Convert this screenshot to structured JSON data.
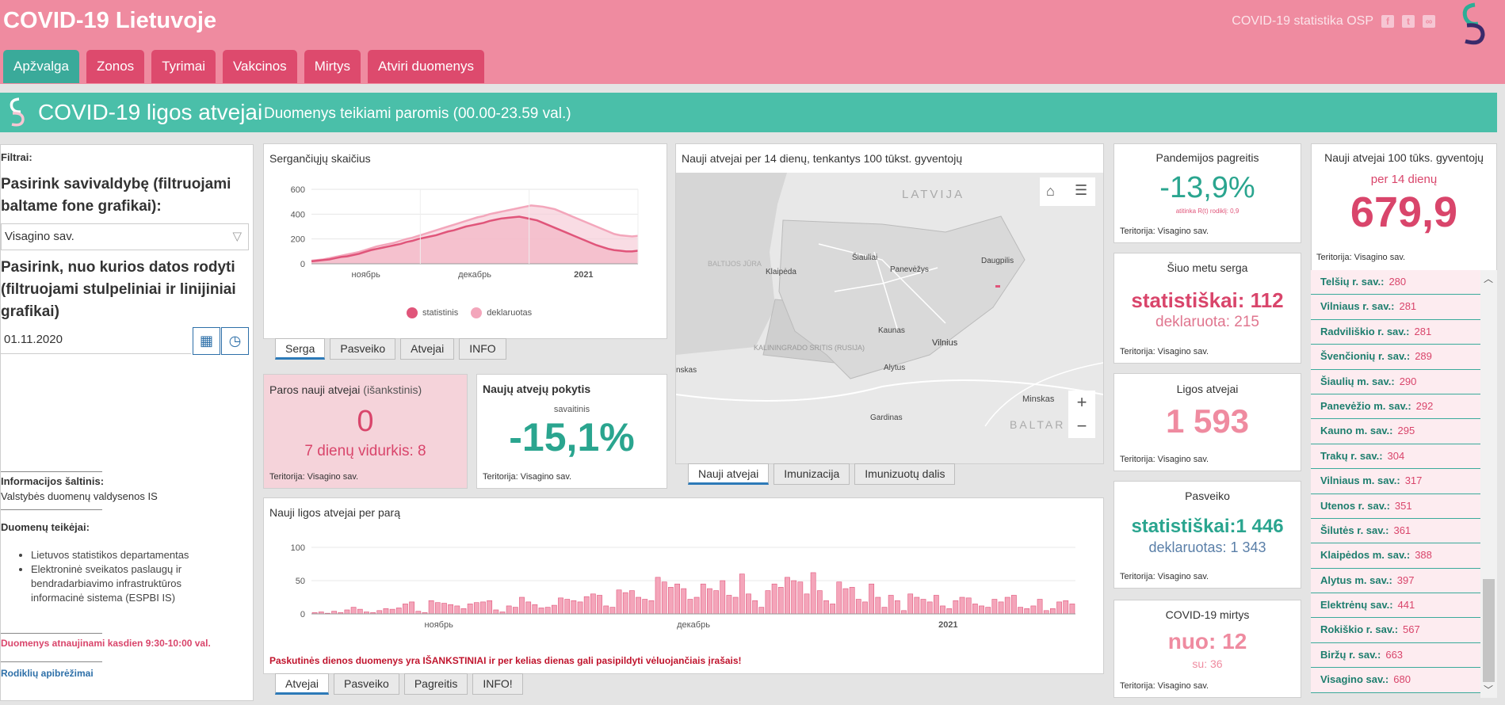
{
  "app": {
    "title": "COVID-19 Lietuvoje",
    "source_label": "COVID-19 statistika OSP"
  },
  "nav": {
    "tabs": [
      "Apžvalga",
      "Zonos",
      "Tyrimai",
      "Vakcinos",
      "Mirtys",
      "Atviri duomenys"
    ]
  },
  "banner": {
    "title": "COVID-19 ligos atvejai",
    "subtitle": "Duomenys teikiami paromis (00.00-23.59 val.)"
  },
  "sidebar": {
    "filters_label": "Filtrai:",
    "muni_label": "Pasirink savivaldybę (filtruojami baltame fone grafikai):",
    "muni_value": "Visagino sav.",
    "date_label": "Pasirink, nuo kurios datos rodyti (filtruojami stulpeliniai ir linijiniai grafikai)",
    "date_value": "01.11.2020",
    "source_title": "Informacijos šaltinis:",
    "source_text": "Valstybės duomenų valdysenos IS",
    "providers_title": "Duomenų teikėjai:",
    "provider_1": "Lietuvos statistikos departamentas",
    "provider_2": "Elektroninė sveikatos paslaugų ir bendradarbiavimo infrastruktūros informacinė sistema (ESPBI IS)",
    "update_note": "Duomenys atnaujinami kasdien 9:30-10:00 val.",
    "definitions_link": "Rodiklių apibrėžimai"
  },
  "territory": "Teritorija: Visagino sav.",
  "sick_chart": {
    "title": "Sergančiųjų skaičius",
    "tabs": [
      "Serga",
      "Pasveiko",
      "Atvejai",
      "INFO"
    ],
    "legend": [
      "statistinis",
      "deklaruotas"
    ],
    "colors": {
      "statistinis": "#e0557a",
      "deklaruotas": "#f3a6bb"
    }
  },
  "map": {
    "title": "Nauji atvejai per 14 dienų, tenkantys 100 tūkst. gyventojų",
    "tabs": [
      "Nauji atvejai",
      "Imunizacija",
      "Imunizuotų dalis"
    ],
    "labels": [
      "LATVIJA",
      "Šiauliai",
      "Panevėžys",
      "Daugpilis",
      "BALTIJOS JŪRA",
      "Klaipėda",
      "KALININGRADO SRITIS (RUSIJA)",
      "Kaunas",
      "Vilnius",
      "Alytus",
      "nskas",
      "Minskas",
      "Gardinas",
      "BALTAR"
    ],
    "zoom_in": "+",
    "zoom_out": "−"
  },
  "daily_new": {
    "title": "Paros nauji atvejai",
    "qualifier": "(išankstinis)",
    "value": "0",
    "avg_label": "7 dienų vidurkis: 8"
  },
  "change": {
    "title": "Naujų atvejų pokytis",
    "period": "savaitinis",
    "value": "-15,1%"
  },
  "daily_chart": {
    "title": "Nauji ligos atvejai per parą",
    "warning": "Paskutinės dienos duomenys yra IŠANKSTINIAI ir per kelias dienas gali pasipildyti vėluojančiais įrašais!",
    "tabs": [
      "Atvejai",
      "Pasveiko",
      "Pagreitis",
      "INFO!"
    ]
  },
  "acceleration": {
    "title": "Pandemijos pagreitis",
    "value": "-13,9%",
    "note": "atitinka R(t) rodiklį: 0,9"
  },
  "current_sick": {
    "title": "Šiuo metu serga",
    "stat": "statistiškai: 112",
    "decl": "deklaruota: 215"
  },
  "cases": {
    "title": "Ligos atvejai",
    "value": "1 593"
  },
  "recovered": {
    "title": "Pasveiko",
    "stat": "statistiškai:1 446",
    "decl": "deklaruotas: 1 343"
  },
  "deaths": {
    "title": "COVID-19 mirtys",
    "from": "nuo: 12",
    "with": "su: 36"
  },
  "incidence": {
    "title": "Nauji atvejai 100 tūks. gyventojų",
    "period": "per 14 dienų",
    "value": "679,9"
  },
  "municipalities": [
    {
      "name": "Telšių r. sav.:",
      "value": "280"
    },
    {
      "name": "Vilniaus r. sav.:",
      "value": "281"
    },
    {
      "name": "Radviliškio r. sav.:",
      "value": "281"
    },
    {
      "name": "Švenčionių r. sav.:",
      "value": "289"
    },
    {
      "name": "Šiaulių m. sav.:",
      "value": "290"
    },
    {
      "name": "Panevėžio m. sav.:",
      "value": "292"
    },
    {
      "name": "Kauno m. sav.:",
      "value": "295"
    },
    {
      "name": "Trakų r. sav.:",
      "value": "304"
    },
    {
      "name": "Vilniaus m. sav.:",
      "value": "317"
    },
    {
      "name": "Utenos r. sav.:",
      "value": "351"
    },
    {
      "name": "Šilutės r. sav.:",
      "value": "361"
    },
    {
      "name": "Klaipėdos m. sav.:",
      "value": "388"
    },
    {
      "name": "Alytus m. sav.:",
      "value": "397"
    },
    {
      "name": "Elektrėnų sav.:",
      "value": "441"
    },
    {
      "name": "Rokiškio r. sav.:",
      "value": "567"
    },
    {
      "name": "Biržų r. sav.:",
      "value": "663"
    },
    {
      "name": "Visagino sav.:",
      "value": "680"
    }
  ],
  "chart_data": [
    {
      "type": "area",
      "title": "Sergančiųjų skaičius",
      "x_ticks": [
        "ноябрь",
        "декабрь",
        "2021"
      ],
      "ylim": [
        0,
        600
      ],
      "y_ticks": [
        0,
        200,
        400,
        600
      ],
      "series": [
        {
          "name": "statistinis",
          "values": [
            20,
            25,
            30,
            35,
            45,
            55,
            60,
            70,
            80,
            95,
            110,
            120,
            130,
            140,
            150,
            160,
            175,
            185,
            200,
            210,
            220,
            230,
            245,
            260,
            270,
            285,
            300,
            310,
            320,
            330,
            345,
            355,
            365,
            370,
            375,
            380,
            370,
            360,
            350,
            330,
            310,
            290,
            270,
            250,
            230,
            210,
            190,
            170,
            150,
            135,
            120,
            110,
            105,
            100,
            100,
            105
          ]
        },
        {
          "name": "deklaruotas",
          "values": [
            25,
            30,
            35,
            45,
            55,
            65,
            75,
            85,
            95,
            110,
            125,
            140,
            150,
            160,
            170,
            185,
            200,
            210,
            225,
            240,
            255,
            270,
            285,
            300,
            315,
            330,
            345,
            360,
            375,
            385,
            400,
            410,
            420,
            430,
            440,
            450,
            460,
            470,
            465,
            460,
            450,
            440,
            420,
            400,
            380,
            360,
            340,
            320,
            300,
            280,
            260,
            240,
            230,
            225,
            220,
            225
          ]
        }
      ]
    },
    {
      "type": "bar",
      "title": "Nauji ligos atvejai per parą",
      "x_ticks": [
        "ноябрь",
        "декабрь",
        "2021"
      ],
      "ylim": [
        0,
        100
      ],
      "y_ticks": [
        0,
        50,
        100
      ],
      "values": [
        2,
        3,
        1,
        4,
        2,
        6,
        10,
        7,
        3,
        2,
        5,
        8,
        7,
        9,
        15,
        18,
        4,
        2,
        20,
        17,
        16,
        14,
        12,
        8,
        15,
        17,
        18,
        20,
        6,
        3,
        12,
        10,
        25,
        18,
        14,
        9,
        10,
        13,
        24,
        22,
        20,
        18,
        26,
        30,
        28,
        12,
        10,
        36,
        32,
        35,
        25,
        22,
        20,
        55,
        48,
        40,
        45,
        38,
        22,
        25,
        45,
        38,
        35,
        50,
        28,
        25,
        60,
        30,
        20,
        10,
        35,
        45,
        40,
        55,
        50,
        48,
        30,
        62,
        35,
        20,
        15,
        48,
        38,
        40,
        22,
        18,
        45,
        25,
        10,
        28,
        20,
        5,
        30,
        25,
        22,
        18,
        28,
        12,
        8,
        20,
        25,
        24,
        15,
        12,
        10,
        22,
        18,
        25,
        28,
        10,
        8,
        12,
        22,
        5,
        8,
        18,
        20,
        15
      ]
    }
  ]
}
